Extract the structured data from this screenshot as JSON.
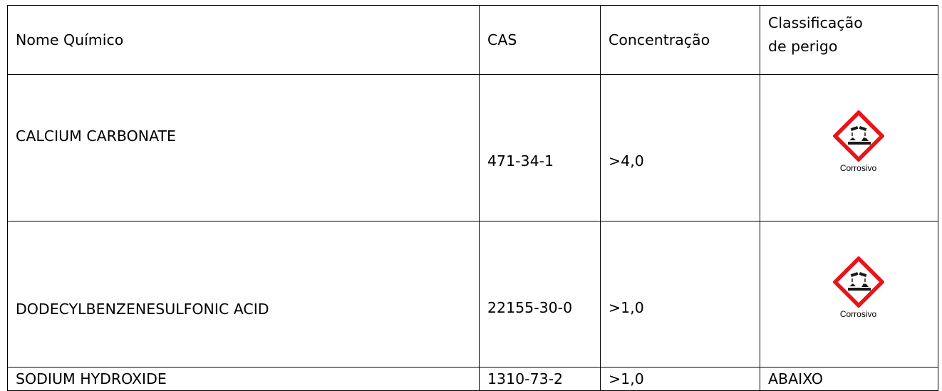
{
  "table": {
    "headers": {
      "name": "Nome Químico",
      "cas": "CAS",
      "concentration": "Concentração",
      "classification_line1": "Classificação",
      "classification_line2": "de perigo"
    },
    "rows": [
      {
        "name": "CALCIUM CARBONATE",
        "cas": "471-34-1",
        "concentration": ">4,0",
        "classification": {
          "pictogram": "corrosion-pictogram",
          "caption": "Corrosivo"
        }
      },
      {
        "name": "DODECYLBENZENESULFONIC ACID",
        "cas": "22155-30-0",
        "concentration": ">1,0",
        "classification": {
          "pictogram": "corrosion-pictogram",
          "caption": "Corrosivo"
        }
      },
      {
        "name": "SODIUM HYDROXIDE",
        "cas": "1310-73-2",
        "concentration": ">1,0",
        "classification": {
          "text": "ABAIXO"
        }
      }
    ]
  },
  "colors": {
    "pictogram_border": "#e8141c",
    "border": "#000000",
    "text": "#000000"
  }
}
